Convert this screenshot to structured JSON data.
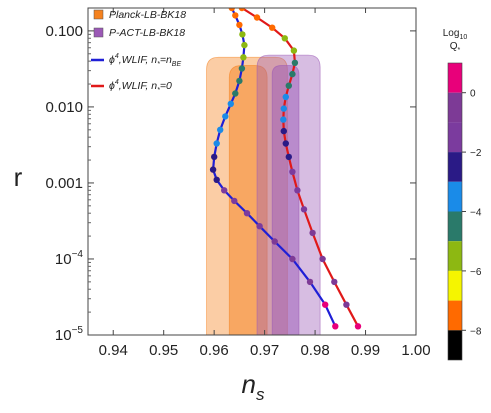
{
  "chart_data": {
    "type": "scatter",
    "xlabel_main": "n",
    "xlabel_sub": "s",
    "ylabel": "r",
    "x_scale": "linear",
    "y_scale": "log",
    "xlim": [
      0.935,
      1.0
    ],
    "ylim": [
      1e-05,
      0.2
    ],
    "x_ticks": [
      {
        "value": 0.94,
        "label": "0.94"
      },
      {
        "value": 0.95,
        "label": "0.95"
      },
      {
        "value": 0.96,
        "label": "0.96"
      },
      {
        "value": 0.97,
        "label": "0.97"
      },
      {
        "value": 0.98,
        "label": "0.98"
      },
      {
        "value": 0.99,
        "label": "0.99"
      },
      {
        "value": 1.0,
        "label": "1.00"
      }
    ],
    "y_ticks": [
      {
        "value": 0.1,
        "label": "0.100",
        "base": "",
        "exp": ""
      },
      {
        "value": 0.01,
        "label": "0.010",
        "base": "",
        "exp": ""
      },
      {
        "value": 0.001,
        "label": "0.001",
        "base": "",
        "exp": ""
      },
      {
        "value": 0.0001,
        "label": "",
        "base": "10",
        "exp": "−4"
      },
      {
        "value": 1e-05,
        "label": "",
        "base": "10",
        "exp": "−5"
      }
    ],
    "regions": [
      {
        "name": "Planck-LB-BK18",
        "color": "#f5821f",
        "levels": [
          {
            "x_left": 0.9585,
            "x_right": 0.9745,
            "top_y": 0.045
          },
          {
            "x_left": 0.963,
            "x_right": 0.9705,
            "top_y": 0.035
          }
        ]
      },
      {
        "name": "P-ACT-LB-BK18",
        "color": "#9b59b6",
        "levels": [
          {
            "x_left": 0.9685,
            "x_right": 0.981,
            "top_y": 0.048
          },
          {
            "x_left": 0.9715,
            "x_right": 0.9768,
            "top_y": 0.035
          }
        ]
      }
    ],
    "series": [
      {
        "legend_prefix": "ϕ",
        "legend_power": "4",
        "legend_body": ",WLIF, n",
        "legend_sub": "*",
        "legend_rest": "=n",
        "legend_sub2": "BE",
        "color": "#1f1fd6",
        "points": [
          {
            "x": 0.9635,
            "y": 0.2
          },
          {
            "x": 0.9642,
            "y": 0.16
          },
          {
            "x": 0.965,
            "y": 0.12
          },
          {
            "x": 0.9656,
            "y": 0.09
          },
          {
            "x": 0.966,
            "y": 0.065
          },
          {
            "x": 0.9658,
            "y": 0.045
          },
          {
            "x": 0.9655,
            "y": 0.032
          },
          {
            "x": 0.965,
            "y": 0.022
          },
          {
            "x": 0.9642,
            "y": 0.015
          },
          {
            "x": 0.9633,
            "y": 0.011
          },
          {
            "x": 0.9622,
            "y": 0.0075
          },
          {
            "x": 0.9612,
            "y": 0.005
          },
          {
            "x": 0.9605,
            "y": 0.0033
          },
          {
            "x": 0.96,
            "y": 0.0022
          },
          {
            "x": 0.9598,
            "y": 0.0015
          },
          {
            "x": 0.9605,
            "y": 0.0011
          },
          {
            "x": 0.962,
            "y": 0.0008
          },
          {
            "x": 0.964,
            "y": 0.00058
          },
          {
            "x": 0.9665,
            "y": 0.0004
          },
          {
            "x": 0.969,
            "y": 0.00027
          },
          {
            "x": 0.972,
            "y": 0.00017
          },
          {
            "x": 0.9755,
            "y": 0.0001
          },
          {
            "x": 0.979,
            "y": 5e-05
          },
          {
            "x": 0.982,
            "y": 2.5e-05
          },
          {
            "x": 0.984,
            "y": 1.3e-05
          }
        ]
      },
      {
        "legend_prefix": "ϕ",
        "legend_power": "4",
        "legend_body": ",WLIF, n",
        "legend_sub": "*",
        "legend_rest": "=0",
        "legend_sub2": "",
        "color": "#e01919",
        "points": [
          {
            "x": 0.9655,
            "y": 0.2
          },
          {
            "x": 0.9685,
            "y": 0.15
          },
          {
            "x": 0.9715,
            "y": 0.11
          },
          {
            "x": 0.974,
            "y": 0.08
          },
          {
            "x": 0.9758,
            "y": 0.055
          },
          {
            "x": 0.976,
            "y": 0.038
          },
          {
            "x": 0.9755,
            "y": 0.027
          },
          {
            "x": 0.9748,
            "y": 0.019
          },
          {
            "x": 0.9742,
            "y": 0.0135
          },
          {
            "x": 0.9738,
            "y": 0.0095
          },
          {
            "x": 0.9737,
            "y": 0.0068
          },
          {
            "x": 0.9738,
            "y": 0.0048
          },
          {
            "x": 0.9742,
            "y": 0.0033
          },
          {
            "x": 0.9748,
            "y": 0.0022
          },
          {
            "x": 0.9755,
            "y": 0.0014
          },
          {
            "x": 0.9765,
            "y": 0.0008
          },
          {
            "x": 0.9778,
            "y": 0.00045
          },
          {
            "x": 0.9795,
            "y": 0.00022
          },
          {
            "x": 0.9815,
            "y": 0.0001
          },
          {
            "x": 0.9838,
            "y": 5e-05
          },
          {
            "x": 0.9862,
            "y": 2.5e-05
          },
          {
            "x": 0.9885,
            "y": 1.3e-05
          }
        ]
      }
    ],
    "colorbar": {
      "title_main": "Log",
      "title_sub": "10",
      "title_line2": "Q",
      "title_line2_sub": "*",
      "ticks": [
        {
          "value": 0,
          "label": "0"
        },
        {
          "value": -2,
          "label": "−2"
        },
        {
          "value": -4,
          "label": "−4"
        },
        {
          "value": -6,
          "label": "−6"
        },
        {
          "value": -8,
          "label": "−8"
        }
      ],
      "range": [
        -9,
        1
      ],
      "segments": [
        {
          "from": 0,
          "to": 1,
          "color": "#e8007a"
        },
        {
          "from": -1,
          "to": 0,
          "color": "#7d3a96"
        },
        {
          "from": -2,
          "to": -1,
          "color": "#7b3b9e"
        },
        {
          "from": -3,
          "to": -2,
          "color": "#2a1a86"
        },
        {
          "from": -4,
          "to": -3,
          "color": "#1a8be8"
        },
        {
          "from": -5,
          "to": -4,
          "color": "#2a7a6a"
        },
        {
          "from": -6,
          "to": -5,
          "color": "#8db812"
        },
        {
          "from": -7,
          "to": -6,
          "color": "#f5f500"
        },
        {
          "from": -8,
          "to": -7,
          "color": "#ff6a00"
        },
        {
          "from": -9,
          "to": -8,
          "color": "#000000"
        }
      ]
    },
    "legend_position": "top-left"
  }
}
